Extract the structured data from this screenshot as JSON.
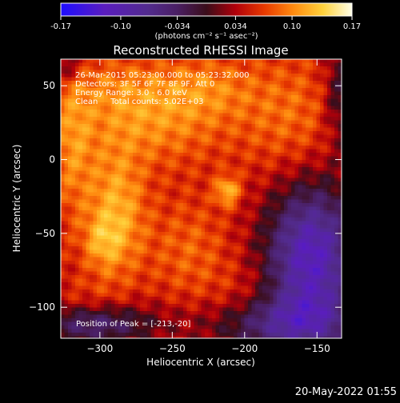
{
  "colorbar": {
    "tick_labels": [
      "-0.17",
      "-0.10",
      "-0.034",
      "0.034",
      "0.10",
      "0.17"
    ],
    "unit_label": "(photons cm⁻² s⁻¹ asec⁻²)",
    "range": [
      -0.17,
      0.17
    ]
  },
  "chart_data": {
    "type": "heatmap",
    "title": "Reconstructed RHESSI Image",
    "xlabel": "Heliocentric X (arcsec)",
    "ylabel": "Heliocentric Y (arcsec)",
    "xlim": [
      -327,
      -133
    ],
    "ylim": [
      -121,
      68
    ],
    "x_ticks": [
      -300,
      -250,
      -200,
      -150
    ],
    "y_ticks": [
      50,
      0,
      -50,
      -100
    ],
    "annotations": [
      "26-Mar-2015 05:23:00.000 to 05:23:32.000",
      "Detectors: 3F 5F 6F 7F 8F 9F, Att 0",
      "Energy Range: 3.0 - 6.0 keV",
      "Clean     Total counts: 5.02E+03"
    ],
    "peak_label": "Position of Peak = [-213,-20]",
    "peak": [
      -213,
      -20
    ],
    "colormap_stops": [
      {
        "v": -0.17,
        "c": "#1e0dff"
      },
      {
        "v": -0.12,
        "c": "#5a1dbe"
      },
      {
        "v": -0.07,
        "c": "#522b8d"
      },
      {
        "v": -0.034,
        "c": "#4a1f63"
      },
      {
        "v": 0.0,
        "c": "#3a0d1a"
      },
      {
        "v": 0.034,
        "c": "#b0000a"
      },
      {
        "v": 0.065,
        "c": "#e83a00"
      },
      {
        "v": 0.1,
        "c": "#ff8c10"
      },
      {
        "v": 0.14,
        "c": "#ffd23c"
      },
      {
        "v": 0.17,
        "c": "#ffffe8"
      }
    ]
  },
  "footer": {
    "timestamp": "20-May-2022 01:55"
  }
}
